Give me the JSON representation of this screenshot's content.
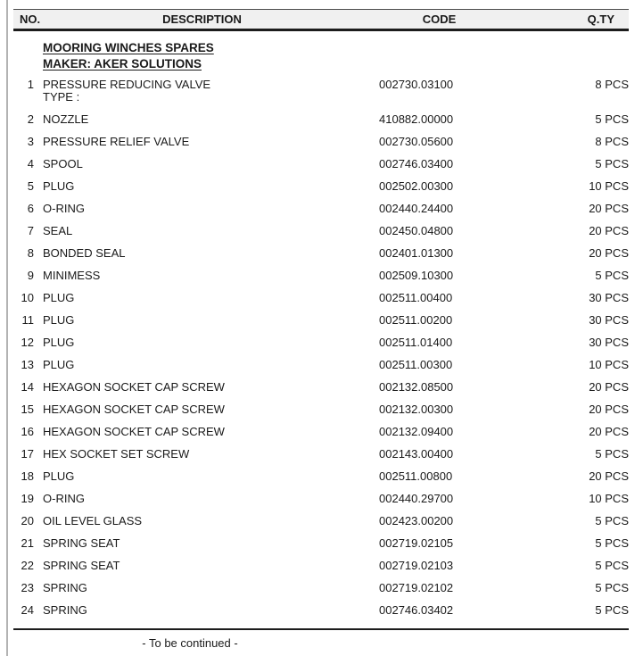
{
  "page": {
    "headers": {
      "no": "NO.",
      "description": "DESCRIPTION",
      "code": "CODE",
      "qty": "Q.TY"
    },
    "section": {
      "title": "MOORING WINCHES SPARES",
      "maker": "MAKER: AKER SOLUTIONS"
    },
    "rows": [
      {
        "no": "1",
        "description_lines": [
          "PRESSURE REDUCING VALVE",
          "TYPE :"
        ],
        "code": "002730.03100",
        "qty": "8 PCS"
      },
      {
        "no": "2",
        "description_lines": [
          "NOZZLE"
        ],
        "code": "410882.00000",
        "qty": "5 PCS"
      },
      {
        "no": "3",
        "description_lines": [
          "PRESSURE RELIEF VALVE"
        ],
        "code": "002730.05600",
        "qty": "8 PCS"
      },
      {
        "no": "4",
        "description_lines": [
          "SPOOL"
        ],
        "code": "002746.03400",
        "qty": "5 PCS"
      },
      {
        "no": "5",
        "description_lines": [
          "PLUG"
        ],
        "code": "002502.00300",
        "qty": "10 PCS"
      },
      {
        "no": "6",
        "description_lines": [
          "O-RING"
        ],
        "code": "002440.24400",
        "qty": "20 PCS"
      },
      {
        "no": "7",
        "description_lines": [
          "SEAL"
        ],
        "code": "002450.04800",
        "qty": "20 PCS"
      },
      {
        "no": "8",
        "description_lines": [
          "BONDED SEAL"
        ],
        "code": "002401.01300",
        "qty": "20 PCS"
      },
      {
        "no": "9",
        "description_lines": [
          "MINIMESS"
        ],
        "code": "002509.10300",
        "qty": "5 PCS"
      },
      {
        "no": "10",
        "description_lines": [
          "PLUG"
        ],
        "code": "002511.00400",
        "qty": "30 PCS"
      },
      {
        "no": "11",
        "description_lines": [
          "PLUG"
        ],
        "code": "002511.00200",
        "qty": "30 PCS"
      },
      {
        "no": "12",
        "description_lines": [
          "PLUG"
        ],
        "code": "002511.01400",
        "qty": "30 PCS"
      },
      {
        "no": "13",
        "description_lines": [
          "PLUG"
        ],
        "code": "002511.00300",
        "qty": "10 PCS"
      },
      {
        "no": "14",
        "description_lines": [
          "HEXAGON SOCKET CAP SCREW"
        ],
        "code": "002132.08500",
        "qty": "20 PCS"
      },
      {
        "no": "15",
        "description_lines": [
          "HEXAGON SOCKET CAP SCREW"
        ],
        "code": "002132.00300",
        "qty": "20 PCS"
      },
      {
        "no": "16",
        "description_lines": [
          "HEXAGON SOCKET CAP SCREW"
        ],
        "code": "002132.09400",
        "qty": "20 PCS"
      },
      {
        "no": "17",
        "description_lines": [
          "HEX SOCKET SET SCREW"
        ],
        "code": "002143.00400",
        "qty": "5 PCS"
      },
      {
        "no": "18",
        "description_lines": [
          "PLUG"
        ],
        "code": "002511.00800",
        "qty": "20 PCS"
      },
      {
        "no": "19",
        "description_lines": [
          "O-RING"
        ],
        "code": "002440.29700",
        "qty": "10 PCS"
      },
      {
        "no": "20",
        "description_lines": [
          "OIL LEVEL GLASS"
        ],
        "code": "002423.00200",
        "qty": "5 PCS"
      },
      {
        "no": "21",
        "description_lines": [
          "SPRING SEAT"
        ],
        "code": "002719.02105",
        "qty": "5 PCS"
      },
      {
        "no": "22",
        "description_lines": [
          "SPRING SEAT"
        ],
        "code": "002719.02103",
        "qty": "5 PCS"
      },
      {
        "no": "23",
        "description_lines": [
          "SPRING"
        ],
        "code": "002719.02102",
        "qty": "5 PCS"
      },
      {
        "no": "24",
        "description_lines": [
          "SPRING"
        ],
        "code": "002746.03402",
        "qty": "5 PCS"
      }
    ],
    "footer_note": "- To be continued -"
  },
  "colors": {
    "header_bg": "#f0f0f0",
    "rule": "#1c1c1c",
    "text": "#1a1a1a",
    "page_edge": "#b3b3b3"
  }
}
